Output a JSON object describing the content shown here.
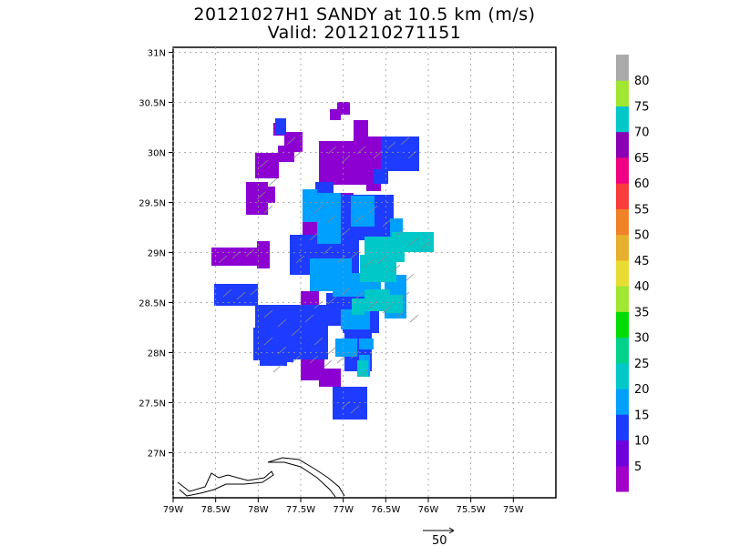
{
  "title": {
    "line1": "20121027H1 SANDY at 10.5 km (m/s)",
    "line2": "Valid: 201210271151"
  },
  "map": {
    "lon_range": [
      -79,
      -74.5
    ],
    "lat_range": [
      26.55,
      31.05
    ],
    "lat_ticks": [
      {
        "value": 31,
        "label": "31N"
      },
      {
        "value": 30.5,
        "label": "30.5N"
      },
      {
        "value": 30,
        "label": "30N"
      },
      {
        "value": 29.5,
        "label": "29.5N"
      },
      {
        "value": 29,
        "label": "29N"
      },
      {
        "value": 28.5,
        "label": "28.5N"
      },
      {
        "value": 28,
        "label": "28N"
      },
      {
        "value": 27.5,
        "label": "27.5N"
      },
      {
        "value": 27,
        "label": "27N"
      }
    ],
    "lon_ticks": [
      {
        "value": -79,
        "label": "79W"
      },
      {
        "value": -78.5,
        "label": "78.5W"
      },
      {
        "value": -78,
        "label": "78W"
      },
      {
        "value": -77.5,
        "label": "77.5W"
      },
      {
        "value": -77,
        "label": "77W"
      },
      {
        "value": -76.5,
        "label": "76.5W"
      },
      {
        "value": -76,
        "label": "76W"
      },
      {
        "value": -75.5,
        "label": "75.5W"
      },
      {
        "value": -75,
        "label": "75W"
      }
    ],
    "grid": true
  },
  "colorbar": {
    "labels": [
      "5",
      "10",
      "15",
      "20",
      "25",
      "30",
      "35",
      "40",
      "45",
      "50",
      "55",
      "60",
      "65",
      "70",
      "75",
      "80"
    ],
    "colors": [
      "#a000c8",
      "#6e00dc",
      "#1e3cff",
      "#00a0ff",
      "#00c8c8",
      "#00d28c",
      "#00dc00",
      "#a0e632",
      "#e6dc32",
      "#e6af2d",
      "#f08228",
      "#fa3c3c",
      "#f00082",
      "#8c00b4",
      "#00c8c8",
      "#a0e632",
      "#aaaaaa"
    ]
  },
  "scale_vector": {
    "label": "50"
  },
  "colors": {
    "purple": "#8c00d2",
    "blue": "#1e3cff",
    "lightblue": "#00a0ff",
    "cyan": "#00c8c8",
    "vector": "#888888"
  }
}
